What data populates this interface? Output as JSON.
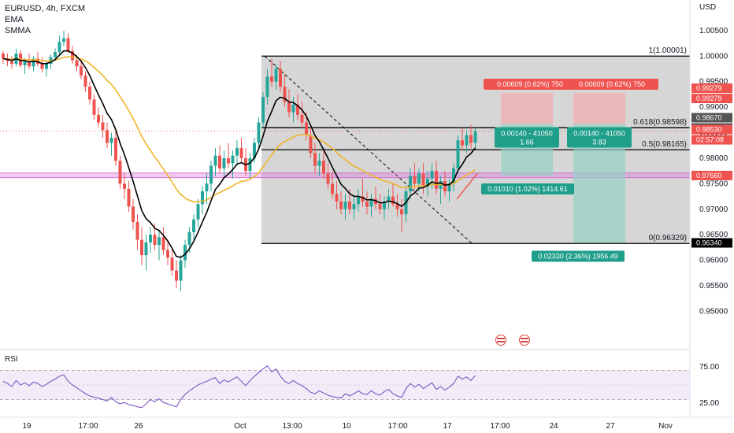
{
  "legend": {
    "symbol": "EURUSD, 4h, FXCM",
    "indicator1": "EMA",
    "indicator2": "SMMA"
  },
  "currency": "USD",
  "rsi_label": "RSI",
  "colors": {
    "up": "#26a69a",
    "down": "#ef5350",
    "ema": "#000000",
    "smma": "#f0b429",
    "fib_fill": "#cfcfcf",
    "zone": "#d670d6",
    "rsi": "#7e57c2"
  },
  "chart_data": {
    "type": "candlestick",
    "ylim": [
      0.9425,
      1.011
    ],
    "y_ticks": [
      "1.00500",
      "1.00000",
      "0.99500",
      "0.99000",
      "0.98500",
      "0.98000",
      "0.97500",
      "0.97000",
      "0.96500",
      "0.96000",
      "0.95500",
      "0.95000"
    ],
    "x_ticks": [
      "19",
      "17:00",
      "26",
      "Oct",
      "13:00",
      "10",
      "17:00",
      "17",
      "17:00",
      "24",
      "27",
      "Nov"
    ],
    "price_labels": [
      {
        "text": "0.99279",
        "color": "#ef5350"
      },
      {
        "text": "0.99279",
        "color": "#ef5350"
      },
      {
        "text": "0.98670",
        "color": "#555555"
      },
      {
        "text": "0.98670",
        "color": "#555555"
      },
      {
        "text": "0.98530",
        "color": "#ef5350"
      },
      {
        "text": "02:57:08",
        "color": "#ef5350"
      },
      {
        "text": "0.97660",
        "color": "#ef5350"
      },
      {
        "text": "0.96340",
        "color": "#000000"
      }
    ],
    "fib_levels": [
      {
        "label": "1(1.00001)",
        "price": 1.00001
      },
      {
        "label": "0.618(0.98598)",
        "price": 0.98598
      },
      {
        "label": "0.5(0.98165)",
        "price": 0.98165
      },
      {
        "label": "0(0.96329)",
        "price": 0.96329
      }
    ],
    "positions": [
      {
        "top_label": "0.00609 (0.62%) 750",
        "mid_label_1": "0.00140 - 41050",
        "mid_label_2": "1.66",
        "bottom_label": "0.01010 (1.02%) 1414.61"
      },
      {
        "top_label": "0.00609 (0.62%) 750",
        "mid_label_1": "0.00140 - 41050",
        "mid_label_2": "3.83",
        "bottom_label": "0.02330 (2.36%) 1956.49"
      }
    ],
    "rsi": {
      "y_ticks": [
        "75.00",
        "25.00"
      ],
      "ylim": [
        10,
        90
      ],
      "upper": 70,
      "lower": 30
    },
    "candles": [
      [
        1.0005,
        1.001,
        0.9985,
        0.9995
      ],
      [
        0.9995,
        1.0005,
        0.998,
        0.999
      ],
      [
        0.999,
        1.0,
        0.9975,
        0.9985
      ],
      [
        0.9985,
        1.0015,
        0.998,
        1.0005
      ],
      [
        1.0005,
        1.0012,
        0.9978,
        0.9982
      ],
      [
        0.9982,
        0.9996,
        0.9965,
        0.999
      ],
      [
        0.999,
        1.0005,
        0.9975,
        0.998
      ],
      [
        0.998,
        1.0,
        0.997,
        0.9995
      ],
      [
        0.9995,
        1.0008,
        0.998,
        0.9985
      ],
      [
        0.9985,
        0.9998,
        0.9968,
        0.9975
      ],
      [
        0.9975,
        0.999,
        0.996,
        0.9985
      ],
      [
        0.9985,
        1.0003,
        0.9975,
        0.9998
      ],
      [
        0.9998,
        1.0015,
        0.999,
        1.0008
      ],
      [
        1.0008,
        1.004,
        1.0,
        1.0028
      ],
      [
        1.0028,
        1.005,
        1.002,
        1.0035
      ],
      [
        1.0035,
        1.0045,
        1.0005,
        1.001
      ],
      [
        1.001,
        1.002,
        0.9985,
        0.9992
      ],
      [
        0.9992,
        1.0003,
        0.997,
        0.998
      ],
      [
        0.998,
        0.9995,
        0.9955,
        0.9962
      ],
      [
        0.9962,
        0.997,
        0.993,
        0.994
      ],
      [
        0.994,
        0.995,
        0.9905,
        0.9915
      ],
      [
        0.9915,
        0.9925,
        0.9875,
        0.9885
      ],
      [
        0.9885,
        0.99,
        0.986,
        0.987
      ],
      [
        0.987,
        0.9885,
        0.984,
        0.9855
      ],
      [
        0.9855,
        0.987,
        0.982,
        0.983
      ],
      [
        0.983,
        0.985,
        0.9805,
        0.984
      ],
      [
        0.984,
        0.9855,
        0.9785,
        0.9795
      ],
      [
        0.9795,
        0.9805,
        0.974,
        0.975
      ],
      [
        0.975,
        0.977,
        0.972,
        0.974
      ],
      [
        0.974,
        0.9755,
        0.9695,
        0.9705
      ],
      [
        0.9705,
        0.972,
        0.966,
        0.9675
      ],
      [
        0.9675,
        0.969,
        0.962,
        0.964
      ],
      [
        0.964,
        0.9665,
        0.959,
        0.961
      ],
      [
        0.961,
        0.965,
        0.958,
        0.9635
      ],
      [
        0.9635,
        0.9665,
        0.9615,
        0.965
      ],
      [
        0.965,
        0.9672,
        0.962,
        0.963
      ],
      [
        0.963,
        0.966,
        0.96,
        0.9645
      ],
      [
        0.9645,
        0.9665,
        0.961,
        0.962
      ],
      [
        0.962,
        0.964,
        0.959,
        0.9605
      ],
      [
        0.9605,
        0.9625,
        0.957,
        0.958
      ],
      [
        0.958,
        0.96,
        0.9545,
        0.956
      ],
      [
        0.956,
        0.961,
        0.954,
        0.96
      ],
      [
        0.96,
        0.964,
        0.9585,
        0.963
      ],
      [
        0.963,
        0.9665,
        0.9615,
        0.9655
      ],
      [
        0.9655,
        0.969,
        0.964,
        0.968
      ],
      [
        0.968,
        0.972,
        0.9665,
        0.971
      ],
      [
        0.971,
        0.9745,
        0.969,
        0.9735
      ],
      [
        0.9735,
        0.977,
        0.971,
        0.975
      ],
      [
        0.975,
        0.9795,
        0.9735,
        0.9785
      ],
      [
        0.9785,
        0.982,
        0.9765,
        0.9805
      ],
      [
        0.9805,
        0.9825,
        0.977,
        0.978
      ],
      [
        0.978,
        0.9815,
        0.9765,
        0.98
      ],
      [
        0.98,
        0.983,
        0.978,
        0.979
      ],
      [
        0.979,
        0.9815,
        0.976,
        0.9805
      ],
      [
        0.9805,
        0.9835,
        0.9785,
        0.982
      ],
      [
        0.982,
        0.984,
        0.979,
        0.98
      ],
      [
        0.98,
        0.982,
        0.9765,
        0.9775
      ],
      [
        0.9775,
        0.981,
        0.976,
        0.98
      ],
      [
        0.98,
        0.984,
        0.979,
        0.983
      ],
      [
        0.983,
        0.988,
        0.982,
        0.987
      ],
      [
        0.987,
        0.993,
        0.986,
        0.992
      ],
      [
        0.992,
        0.9975,
        0.9905,
        0.996
      ],
      [
        0.996,
        0.9995,
        0.994,
        0.995
      ],
      [
        0.995,
        0.9985,
        0.9935,
        0.9975
      ],
      [
        0.9975,
        0.999,
        0.993,
        0.994
      ],
      [
        0.994,
        0.9965,
        0.99,
        0.991
      ],
      [
        0.991,
        0.9935,
        0.988,
        0.989
      ],
      [
        0.989,
        0.992,
        0.987,
        0.9905
      ],
      [
        0.9905,
        0.9925,
        0.9875,
        0.9885
      ],
      [
        0.9885,
        0.991,
        0.986,
        0.987
      ],
      [
        0.987,
        0.989,
        0.9835,
        0.9845
      ],
      [
        0.9845,
        0.986,
        0.98,
        0.981
      ],
      [
        0.981,
        0.983,
        0.977,
        0.9785
      ],
      [
        0.9785,
        0.981,
        0.9765,
        0.9795
      ],
      [
        0.9795,
        0.982,
        0.976,
        0.977
      ],
      [
        0.977,
        0.979,
        0.974,
        0.975
      ],
      [
        0.975,
        0.9775,
        0.972,
        0.973
      ],
      [
        0.973,
        0.9755,
        0.97,
        0.9715
      ],
      [
        0.9715,
        0.9735,
        0.969,
        0.97
      ],
      [
        0.97,
        0.973,
        0.968,
        0.9715
      ],
      [
        0.9715,
        0.974,
        0.969,
        0.97
      ],
      [
        0.97,
        0.9725,
        0.968,
        0.971
      ],
      [
        0.971,
        0.974,
        0.9695,
        0.9725
      ],
      [
        0.9725,
        0.976,
        0.9705,
        0.9715
      ],
      [
        0.9715,
        0.9735,
        0.969,
        0.9705
      ],
      [
        0.9705,
        0.973,
        0.9685,
        0.972
      ],
      [
        0.972,
        0.9745,
        0.97,
        0.971
      ],
      [
        0.971,
        0.973,
        0.969,
        0.97
      ],
      [
        0.97,
        0.9725,
        0.968,
        0.9715
      ],
      [
        0.9715,
        0.974,
        0.97,
        0.9725
      ],
      [
        0.9725,
        0.975,
        0.9705,
        0.971
      ],
      [
        0.971,
        0.973,
        0.9685,
        0.97
      ],
      [
        0.97,
        0.972,
        0.9655,
        0.969
      ],
      [
        0.969,
        0.9745,
        0.9675,
        0.9735
      ],
      [
        0.9735,
        0.978,
        0.972,
        0.9765
      ],
      [
        0.9765,
        0.979,
        0.974,
        0.975
      ],
      [
        0.975,
        0.978,
        0.9735,
        0.977
      ],
      [
        0.977,
        0.979,
        0.973,
        0.9745
      ],
      [
        0.9745,
        0.9775,
        0.9725,
        0.976
      ],
      [
        0.976,
        0.979,
        0.974,
        0.9775
      ],
      [
        0.9775,
        0.9795,
        0.973,
        0.974
      ],
      [
        0.974,
        0.9765,
        0.971,
        0.9755
      ],
      [
        0.9755,
        0.9775,
        0.9725,
        0.9735
      ],
      [
        0.9735,
        0.976,
        0.9715,
        0.975
      ],
      [
        0.975,
        0.979,
        0.9735,
        0.978
      ],
      [
        0.978,
        0.9845,
        0.977,
        0.9835
      ],
      [
        0.9835,
        0.986,
        0.9815,
        0.9825
      ],
      [
        0.9825,
        0.9855,
        0.981,
        0.9845
      ],
      [
        0.9845,
        0.9865,
        0.982,
        0.983
      ],
      [
        0.983,
        0.986,
        0.982,
        0.9853
      ]
    ],
    "rsi_values": [
      55,
      52,
      48,
      56,
      50,
      53,
      49,
      54,
      52,
      48,
      51,
      55,
      58,
      62,
      64,
      55,
      50,
      46,
      42,
      38,
      35,
      33,
      32,
      30,
      28,
      33,
      27,
      24,
      26,
      23,
      22,
      20,
      19,
      24,
      30,
      27,
      31,
      26,
      24,
      22,
      20,
      30,
      37,
      42,
      46,
      50,
      53,
      55,
      58,
      60,
      52,
      57,
      54,
      58,
      61,
      55,
      49,
      56,
      62,
      67,
      72,
      76,
      68,
      72,
      62,
      55,
      52,
      56,
      52,
      49,
      45,
      40,
      38,
      42,
      39,
      36,
      34,
      33,
      32,
      38,
      35,
      38,
      42,
      38,
      37,
      42,
      38,
      36,
      41,
      44,
      38,
      35,
      33,
      45,
      52,
      47,
      51,
      45,
      49,
      53,
      44,
      48,
      43,
      47,
      52,
      62,
      58,
      61,
      56,
      63
    ]
  }
}
